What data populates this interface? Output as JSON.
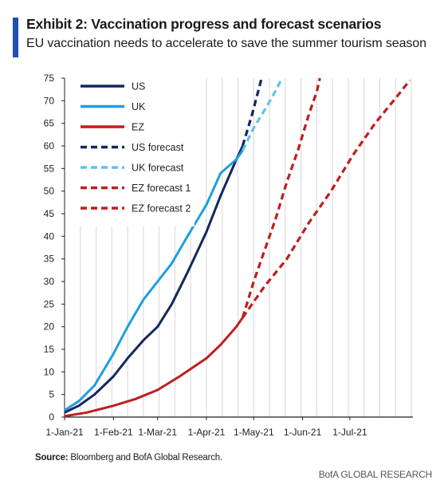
{
  "header": {
    "title": "Exhibit 2: Vaccination progress and forecast scenarios",
    "subtitle": "EU vaccination needs to accelerate to save the summer tourism season",
    "accent_color": "#1f4fb5"
  },
  "footer": {
    "source_label": "Source:",
    "source_text": "Bloomberg and BofA Global Research.",
    "brand": "BofA GLOBAL RESEARCH"
  },
  "chart_data": {
    "type": "line",
    "title": "",
    "xlabel": "",
    "ylabel": "",
    "x_axis": {
      "type": "date",
      "range": [
        "2021-01-01",
        "2021-08-10"
      ],
      "ticks": [
        {
          "date": "2021-01-01",
          "label": "1-Jan-21"
        },
        {
          "date": "2021-02-01",
          "label": "1-Feb-21"
        },
        {
          "date": "2021-03-01",
          "label": "1-Mar-21"
        },
        {
          "date": "2021-04-01",
          "label": "1-Apr-21"
        },
        {
          "date": "2021-05-01",
          "label": "1-May-21"
        },
        {
          "date": "2021-06-01",
          "label": "1-Jun-21"
        },
        {
          "date": "2021-07-01",
          "label": "1-Jul-21"
        }
      ]
    },
    "y_axis": {
      "range": [
        0,
        75
      ],
      "ticks": [
        0,
        5,
        10,
        15,
        20,
        25,
        30,
        35,
        40,
        45,
        50,
        55,
        60,
        65,
        70,
        75
      ]
    },
    "grid": "vertical",
    "legend_position": "top-left",
    "series": [
      {
        "name": "US",
        "color": "#13275f",
        "dashed": false,
        "points": [
          [
            "2021-01-01",
            1
          ],
          [
            "2021-01-10",
            2.5
          ],
          [
            "2021-01-20",
            5
          ],
          [
            "2021-02-01",
            9
          ],
          [
            "2021-02-10",
            13
          ],
          [
            "2021-02-20",
            17
          ],
          [
            "2021-03-01",
            20
          ],
          [
            "2021-03-10",
            25
          ],
          [
            "2021-03-20",
            32
          ],
          [
            "2021-04-01",
            41
          ],
          [
            "2021-04-10",
            49
          ],
          [
            "2021-04-20",
            57
          ],
          [
            "2021-04-24",
            60
          ]
        ]
      },
      {
        "name": "UK",
        "color": "#1e9ee0",
        "dashed": false,
        "points": [
          [
            "2021-01-01",
            1.5
          ],
          [
            "2021-01-10",
            3.5
          ],
          [
            "2021-01-20",
            7
          ],
          [
            "2021-02-01",
            14
          ],
          [
            "2021-02-10",
            20
          ],
          [
            "2021-02-20",
            26
          ],
          [
            "2021-03-01",
            30
          ],
          [
            "2021-03-10",
            34
          ],
          [
            "2021-03-20",
            40
          ],
          [
            "2021-04-01",
            47
          ],
          [
            "2021-04-10",
            54
          ],
          [
            "2021-04-20",
            57
          ],
          [
            "2021-04-24",
            59
          ]
        ]
      },
      {
        "name": "EZ",
        "color": "#c01d1d",
        "dashed": false,
        "points": [
          [
            "2021-01-01",
            0.2
          ],
          [
            "2021-01-15",
            1
          ],
          [
            "2021-02-01",
            2.5
          ],
          [
            "2021-02-15",
            4
          ],
          [
            "2021-03-01",
            6
          ],
          [
            "2021-03-15",
            9
          ],
          [
            "2021-04-01",
            13
          ],
          [
            "2021-04-10",
            16
          ],
          [
            "2021-04-20",
            20
          ],
          [
            "2021-04-24",
            22
          ]
        ]
      },
      {
        "name": "US forecast",
        "color": "#13275f",
        "dashed": true,
        "points": [
          [
            "2021-04-24",
            60
          ],
          [
            "2021-04-30",
            67
          ],
          [
            "2021-05-06",
            75
          ]
        ]
      },
      {
        "name": "UK forecast",
        "color": "#5cc3ea",
        "dashed": true,
        "points": [
          [
            "2021-04-24",
            59
          ],
          [
            "2021-05-01",
            64
          ],
          [
            "2021-05-08",
            68
          ],
          [
            "2021-05-13",
            71
          ],
          [
            "2021-05-19",
            75
          ]
        ]
      },
      {
        "name": "EZ forecast 1",
        "color": "#c01d1d",
        "dashed": true,
        "points": [
          [
            "2021-04-24",
            22
          ],
          [
            "2021-05-01",
            30
          ],
          [
            "2021-05-08",
            37
          ],
          [
            "2021-05-15",
            44
          ],
          [
            "2021-05-22",
            52
          ],
          [
            "2021-05-29",
            59
          ],
          [
            "2021-06-05",
            67
          ],
          [
            "2021-06-10",
            72
          ],
          [
            "2021-06-12",
            75
          ]
        ]
      },
      {
        "name": "EZ forecast 2",
        "color": "#c01d1d",
        "dashed": true,
        "points": [
          [
            "2021-04-24",
            22
          ],
          [
            "2021-05-08",
            29
          ],
          [
            "2021-05-22",
            35
          ],
          [
            "2021-06-05",
            43
          ],
          [
            "2021-06-19",
            50
          ],
          [
            "2021-07-03",
            58
          ],
          [
            "2021-07-17",
            65
          ],
          [
            "2021-07-31",
            71
          ],
          [
            "2021-08-08",
            74.5
          ]
        ]
      }
    ]
  }
}
